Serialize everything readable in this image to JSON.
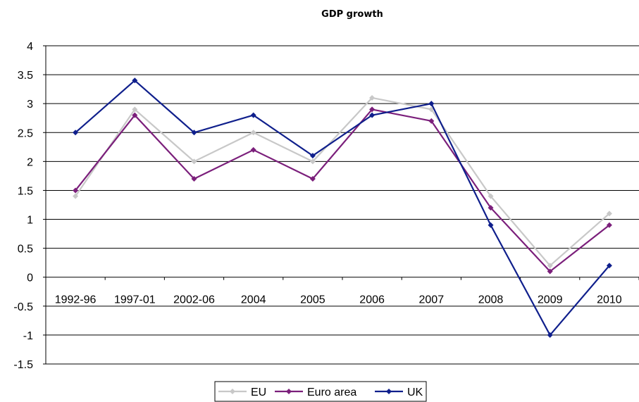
{
  "chart_data": {
    "type": "line",
    "title": "GDP growth",
    "xlabel": "",
    "ylabel": "",
    "categories": [
      "1992-96",
      "1997-01",
      "2002-06",
      "2004",
      "2005",
      "2006",
      "2007",
      "2008",
      "2009",
      "2010"
    ],
    "ylim": [
      -1.5,
      4
    ],
    "yticks": [
      4,
      3.5,
      3,
      2.5,
      2,
      1.5,
      1,
      0.5,
      0,
      -0.5,
      -1,
      -1.5
    ],
    "ytick_labels": [
      "4",
      "3.5",
      "3",
      "2.5",
      "2",
      "1.5",
      "1",
      "0.5",
      "0",
      "-0.5",
      "-1",
      "-1.5"
    ],
    "grid": true,
    "legend_position": "bottom",
    "series": [
      {
        "name": "EU",
        "color": "#c8c8c8",
        "values": [
          1.4,
          2.9,
          2.0,
          2.5,
          2.0,
          3.1,
          2.9,
          1.4,
          0.2,
          1.1
        ]
      },
      {
        "name": "Euro area",
        "color": "#7b1f7b",
        "values": [
          1.5,
          2.8,
          1.7,
          2.2,
          1.7,
          2.9,
          2.7,
          1.2,
          0.1,
          0.9
        ]
      },
      {
        "name": "UK",
        "color": "#0f1f8c",
        "values": [
          2.5,
          3.4,
          2.5,
          2.8,
          2.1,
          2.8,
          3.0,
          0.9,
          -1.0,
          0.2
        ]
      }
    ]
  }
}
